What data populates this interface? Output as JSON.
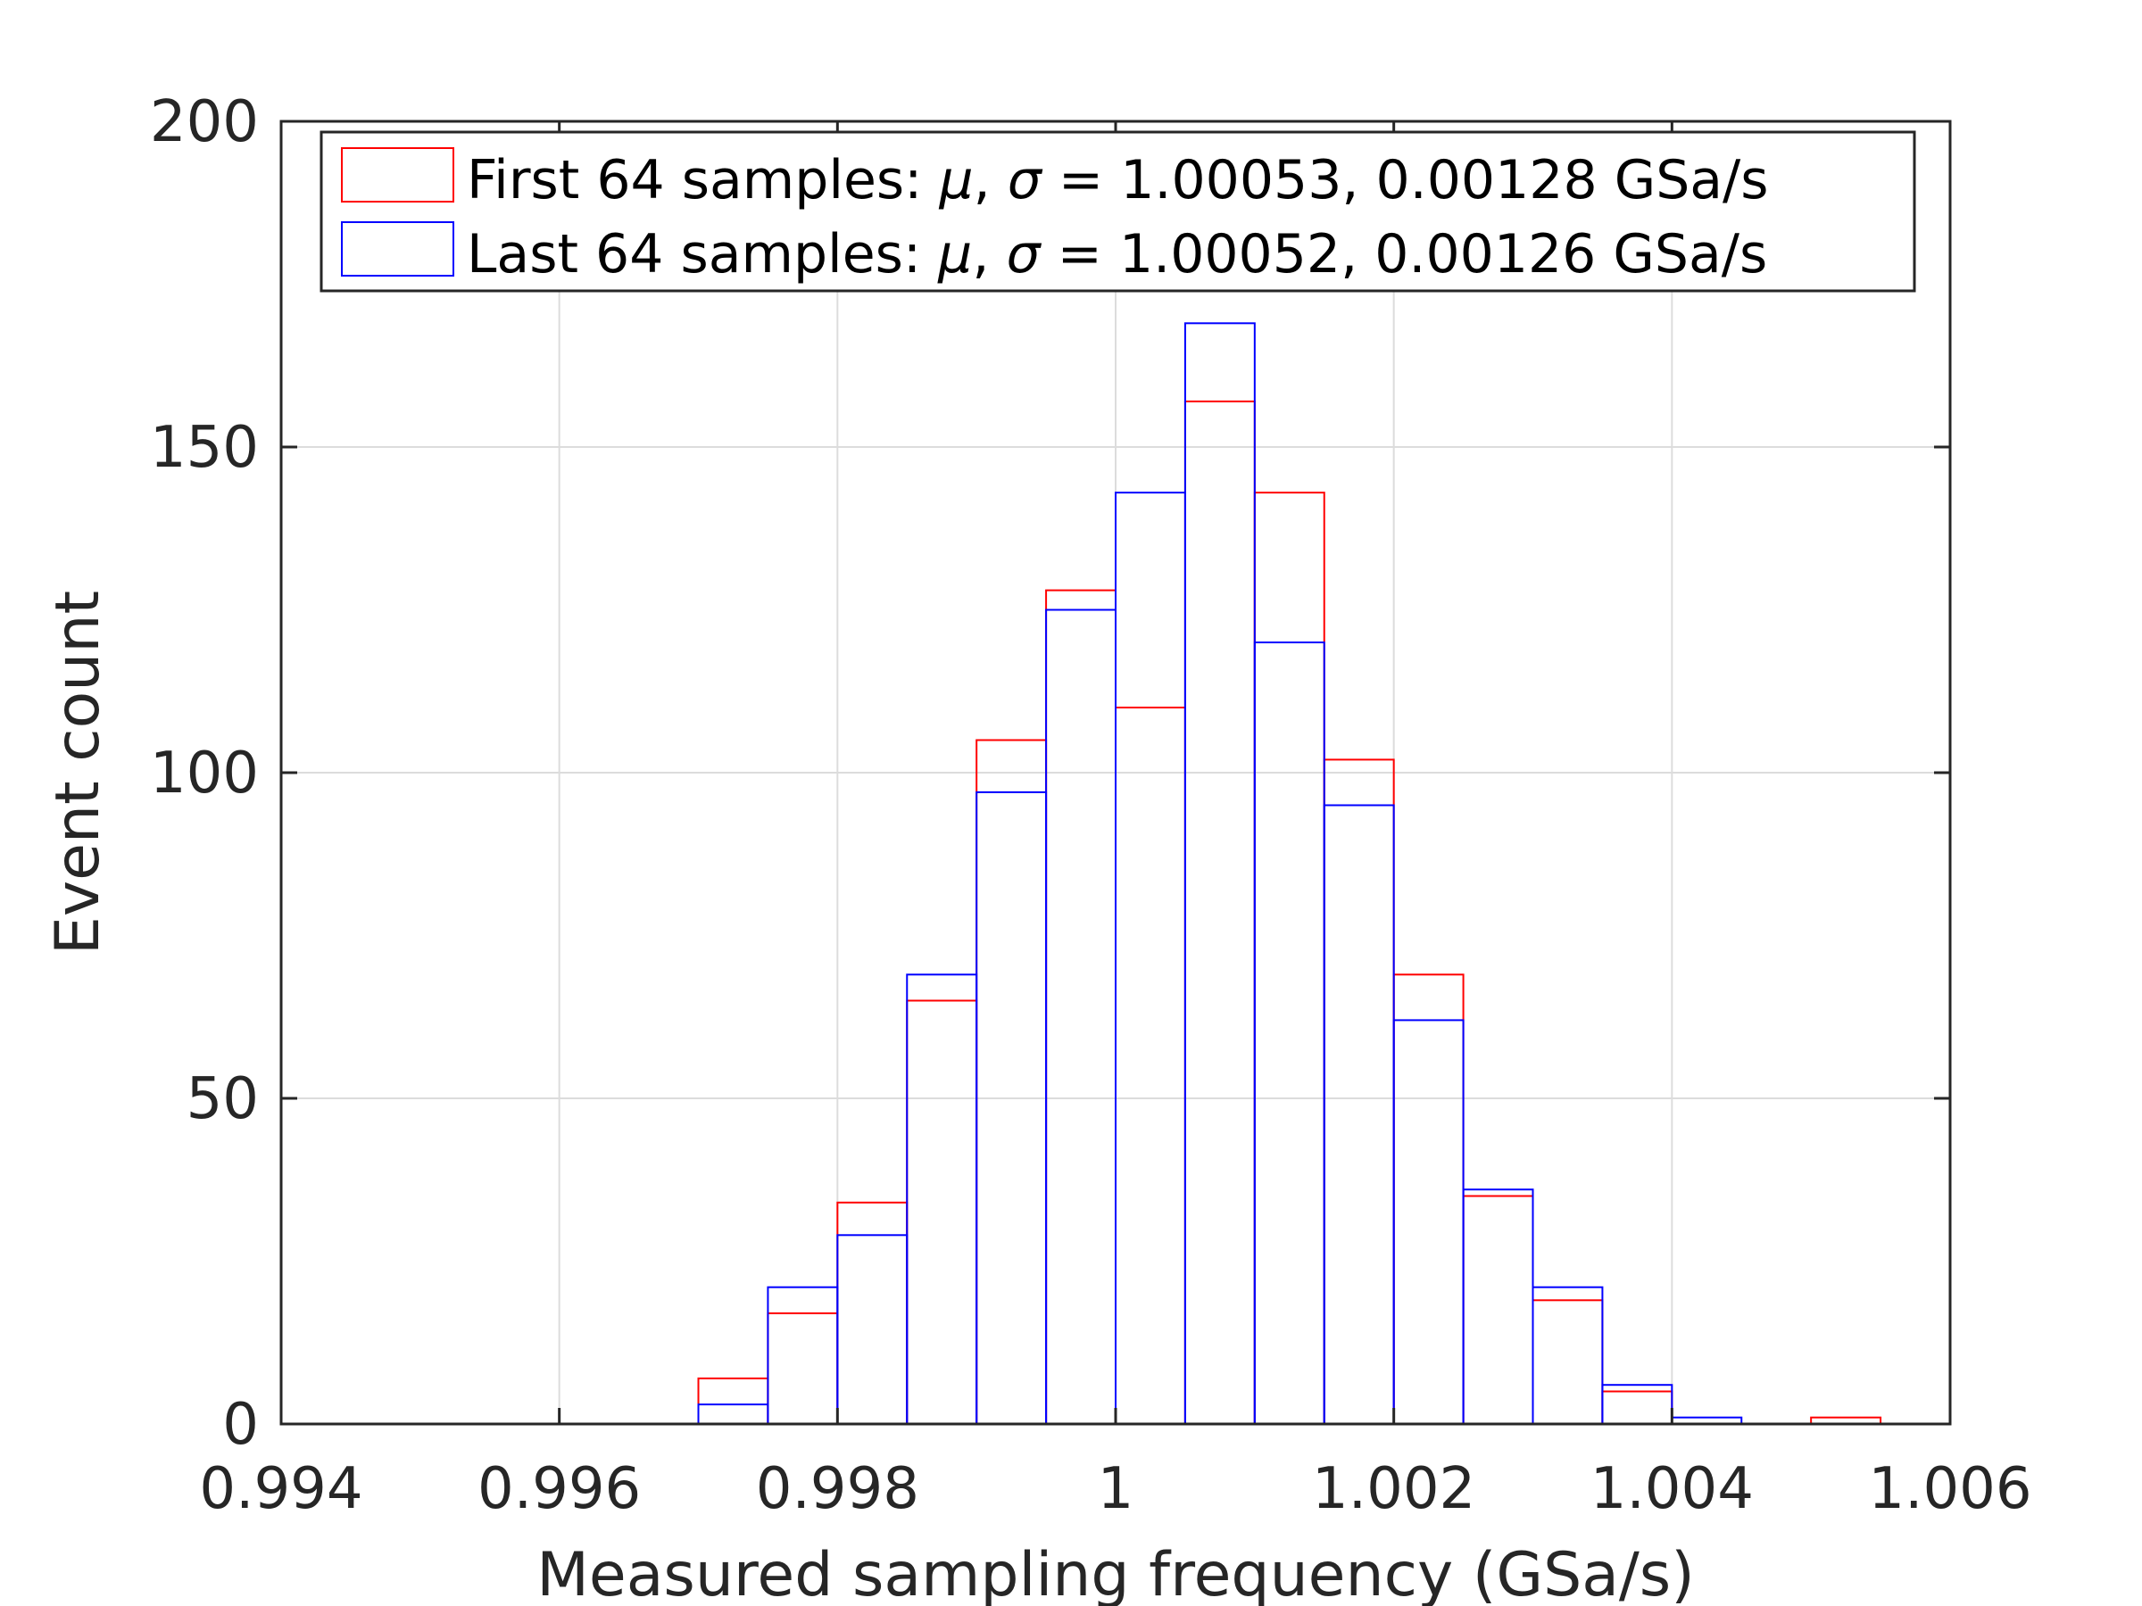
{
  "chart_data": {
    "type": "histogram",
    "title": "",
    "xlabel": "Measured sampling frequency (GSa/s)",
    "ylabel": "Event count",
    "xlim": [
      0.994,
      1.006
    ],
    "ylim": [
      0,
      200
    ],
    "xticks": [
      0.994,
      0.996,
      0.998,
      1.0,
      1.002,
      1.004,
      1.006
    ],
    "xtick_labels": [
      "0.994",
      "0.996",
      "0.998",
      "1",
      "1.002",
      "1.004",
      "1.006"
    ],
    "yticks": [
      0,
      50,
      100,
      150,
      200
    ],
    "ytick_labels": [
      "0",
      "50",
      "100",
      "150",
      "200"
    ],
    "grid": true,
    "legend_position": "top",
    "bin_edges": [
      0.997,
      0.9975,
      0.998,
      0.9985,
      0.999,
      0.9995,
      1.0,
      1.0005,
      1.001,
      1.0015,
      1.002,
      1.0025,
      1.003,
      1.0035,
      1.004,
      1.0045,
      1.005,
      1.0055
    ],
    "series": [
      {
        "name": "First 64 samples",
        "legend_prefix": "First 64 samples: ",
        "legend_suffix": " = 1.00053, 0.00128 GSa/s",
        "color": "#ff0000",
        "counts": [
          7,
          17,
          34,
          65,
          105,
          128,
          110,
          157,
          143,
          102,
          69,
          35,
          19,
          5,
          0,
          0,
          1
        ]
      },
      {
        "name": "Last 64 samples",
        "legend_prefix": "Last 64 samples: ",
        "legend_suffix": " = 1.00052, 0.00126 GSa/s",
        "color": "#0000ff",
        "counts": [
          3,
          21,
          29,
          69,
          97,
          125,
          143,
          169,
          120,
          95,
          62,
          36,
          21,
          6,
          1,
          0,
          0
        ]
      }
    ],
    "legend_symbols": {
      "mu": "μ",
      "comma": ", ",
      "sigma": "σ"
    }
  }
}
